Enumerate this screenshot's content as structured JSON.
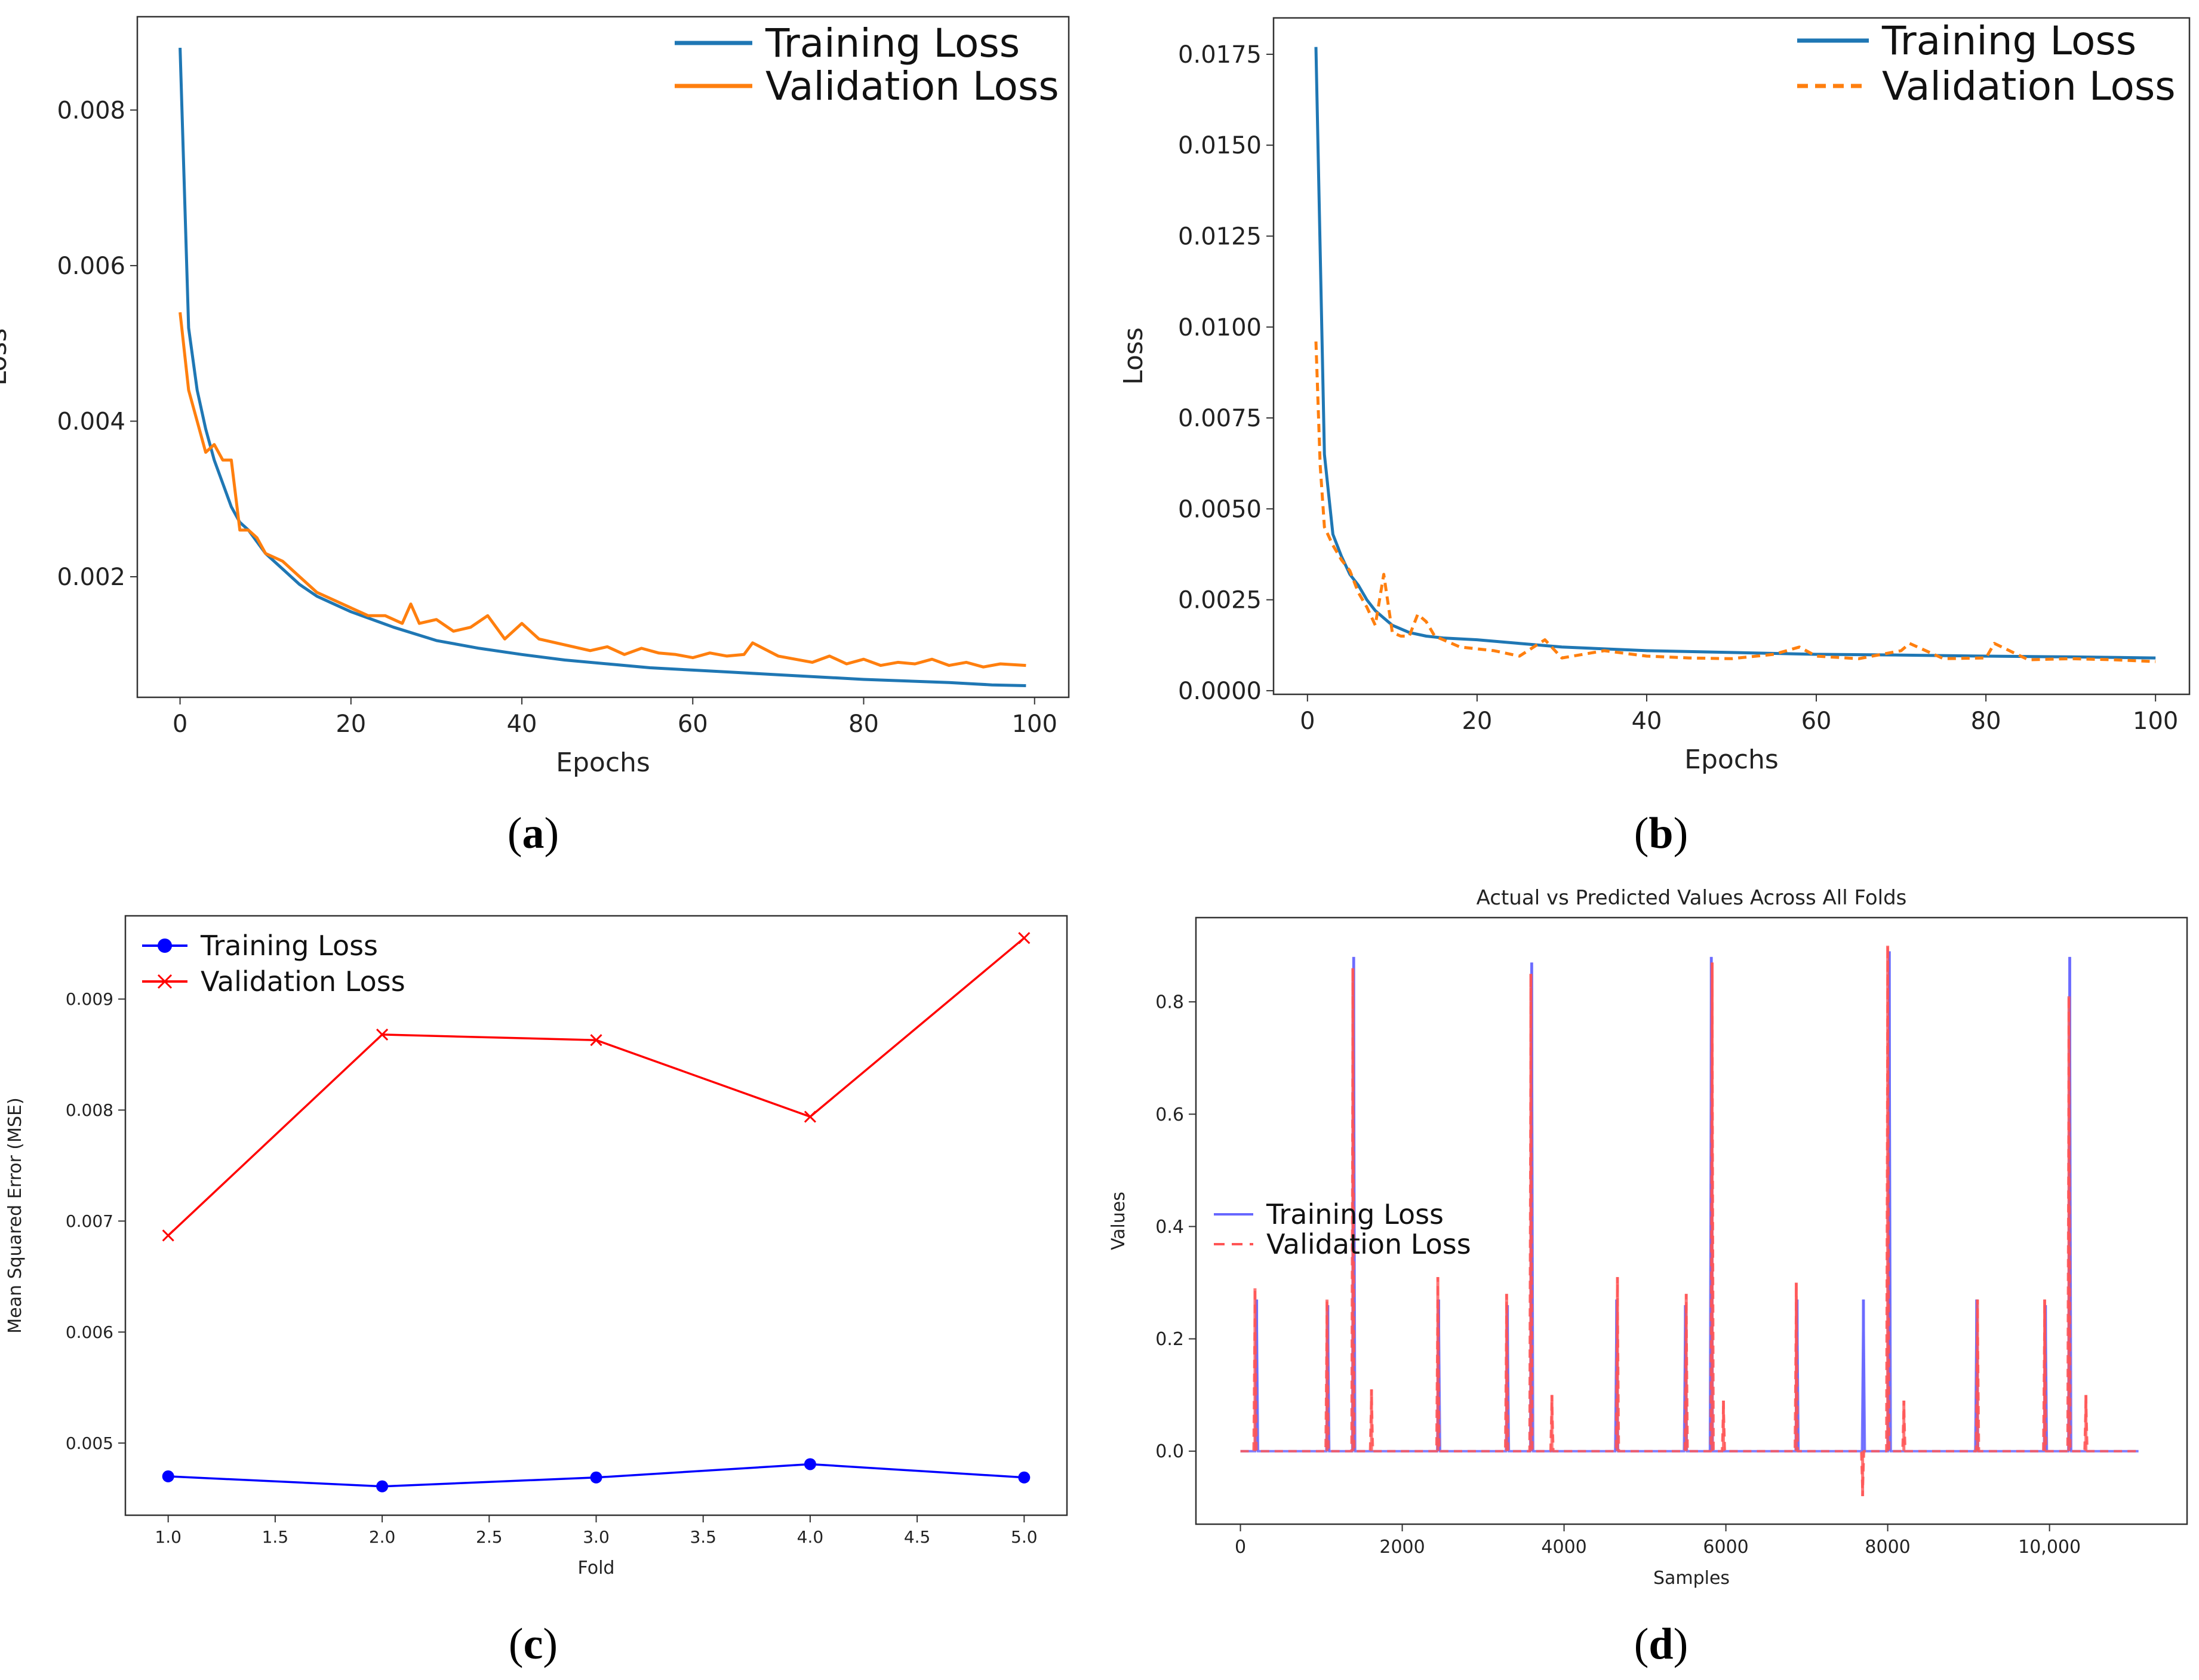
{
  "chart_data": [
    {
      "panel": "(a)",
      "type": "line",
      "title": "",
      "xlabel": "Epochs",
      "ylabel": "Loss",
      "xlim": [
        -5,
        104
      ],
      "ylim": [
        0.00045,
        0.0092
      ],
      "xticks": [
        0,
        20,
        40,
        60,
        80,
        100
      ],
      "yticks": [
        0.002,
        0.004,
        0.006,
        0.008
      ],
      "ytick_labels": [
        "0.002",
        "0.004",
        "0.006",
        "0.008"
      ],
      "legend_position": "top-right",
      "series": [
        {
          "name": "Training Loss",
          "color": "#1f77b4",
          "style": "solid",
          "x": [
            0,
            1,
            2,
            3,
            4,
            5,
            6,
            7,
            8,
            10,
            12,
            14,
            16,
            18,
            20,
            25,
            30,
            35,
            40,
            45,
            50,
            55,
            60,
            65,
            70,
            75,
            80,
            85,
            90,
            95,
            99
          ],
          "y": [
            0.0088,
            0.0052,
            0.0044,
            0.0039,
            0.0035,
            0.0032,
            0.0029,
            0.0027,
            0.0026,
            0.0023,
            0.0021,
            0.0019,
            0.00175,
            0.00165,
            0.00155,
            0.00135,
            0.00118,
            0.00108,
            0.001,
            0.00093,
            0.00088,
            0.00083,
            0.0008,
            0.00077,
            0.00074,
            0.00071,
            0.00068,
            0.00066,
            0.00064,
            0.00061,
            0.0006
          ]
        },
        {
          "name": "Validation Loss",
          "color": "#ff7f0e",
          "style": "solid",
          "x": [
            0,
            1,
            2,
            3,
            4,
            5,
            6,
            7,
            8,
            9,
            10,
            12,
            14,
            16,
            18,
            20,
            22,
            24,
            26,
            27,
            28,
            30,
            32,
            34,
            36,
            38,
            40,
            42,
            44,
            46,
            48,
            50,
            52,
            54,
            56,
            58,
            60,
            62,
            64,
            66,
            67,
            70,
            72,
            74,
            76,
            78,
            80,
            82,
            84,
            86,
            88,
            90,
            92,
            94,
            96,
            99
          ],
          "y": [
            0.0054,
            0.0044,
            0.004,
            0.0036,
            0.0037,
            0.0035,
            0.0035,
            0.0026,
            0.0026,
            0.0025,
            0.0023,
            0.0022,
            0.002,
            0.0018,
            0.0017,
            0.0016,
            0.0015,
            0.0015,
            0.0014,
            0.00165,
            0.0014,
            0.00145,
            0.0013,
            0.00135,
            0.0015,
            0.0012,
            0.0014,
            0.0012,
            0.00115,
            0.0011,
            0.00105,
            0.0011,
            0.001,
            0.00108,
            0.00102,
            0.001,
            0.00096,
            0.00102,
            0.00098,
            0.001,
            0.00115,
            0.00098,
            0.00094,
            0.0009,
            0.00098,
            0.00088,
            0.00094,
            0.00086,
            0.0009,
            0.00088,
            0.00094,
            0.00086,
            0.0009,
            0.00084,
            0.00088,
            0.00086
          ]
        }
      ]
    },
    {
      "panel": "(b)",
      "type": "line",
      "title": "",
      "xlabel": "Epochs",
      "ylabel": "Loss",
      "xlim": [
        -4,
        104
      ],
      "ylim": [
        -0.0001,
        0.0185
      ],
      "xticks": [
        0,
        20,
        40,
        60,
        80,
        100
      ],
      "yticks": [
        0,
        0.0025,
        0.005,
        0.0075,
        0.01,
        0.0125,
        0.015,
        0.0175
      ],
      "ytick_labels": [
        "0.0000",
        "0.0025",
        "0.0050",
        "0.0075",
        "0.0100",
        "0.0125",
        "0.0150",
        "0.0175"
      ],
      "legend_position": "top-right",
      "series": [
        {
          "name": "Training Loss",
          "color": "#1f77b4",
          "style": "solid",
          "x": [
            1,
            2,
            3,
            4,
            5,
            6,
            7,
            8,
            9,
            10,
            12,
            14,
            16,
            20,
            25,
            30,
            40,
            50,
            60,
            70,
            80,
            90,
            100
          ],
          "y": [
            0.0177,
            0.0065,
            0.0043,
            0.0037,
            0.0032,
            0.0029,
            0.0025,
            0.0022,
            0.002,
            0.0018,
            0.0016,
            0.0015,
            0.00145,
            0.0014,
            0.0013,
            0.0012,
            0.0011,
            0.00105,
            0.001,
            0.00098,
            0.00095,
            0.00093,
            0.0009
          ]
        },
        {
          "name": "Validation Loss",
          "color": "#ff7f0e",
          "style": "dashed",
          "x": [
            1,
            1.5,
            2,
            3,
            4,
            5,
            6,
            7,
            8,
            9,
            10,
            11,
            12,
            13,
            14,
            15,
            18,
            22,
            25,
            28,
            30,
            35,
            40,
            45,
            50,
            55,
            58,
            60,
            65,
            70,
            71,
            75,
            80,
            81,
            85,
            90,
            95,
            100
          ],
          "y": [
            0.0096,
            0.0062,
            0.0045,
            0.004,
            0.0036,
            0.0033,
            0.0027,
            0.0023,
            0.0018,
            0.0032,
            0.0016,
            0.0015,
            0.0015,
            0.0021,
            0.0019,
            0.0015,
            0.0012,
            0.0011,
            0.00095,
            0.0014,
            0.0009,
            0.0011,
            0.00095,
            0.0009,
            0.00088,
            0.001,
            0.0012,
            0.00095,
            0.00088,
            0.0011,
            0.0013,
            0.00088,
            0.0009,
            0.0013,
            0.00085,
            0.00088,
            0.00085,
            0.0008
          ]
        }
      ]
    },
    {
      "panel": "(c)",
      "type": "line",
      "title": "",
      "xlabel": "Fold",
      "ylabel": "Mean Squared Error (MSE)",
      "xlim": [
        0.8,
        5.2
      ],
      "ylim": [
        0.00435,
        0.00975
      ],
      "xticks": [
        1.0,
        1.5,
        2.0,
        2.5,
        3.0,
        3.5,
        4.0,
        4.5,
        5.0
      ],
      "xtick_labels": [
        "1.0",
        "1.5",
        "2.0",
        "2.5",
        "3.0",
        "3.5",
        "4.0",
        "4.5",
        "5.0"
      ],
      "yticks": [
        0.005,
        0.006,
        0.007,
        0.008,
        0.009
      ],
      "ytick_labels": [
        "0.005",
        "0.006",
        "0.007",
        "0.008",
        "0.009"
      ],
      "legend_position": "top-left",
      "series": [
        {
          "name": "Training Loss",
          "color": "#0000ff",
          "marker": "o",
          "x": [
            1,
            2,
            3,
            4,
            5
          ],
          "y": [
            0.0047,
            0.00461,
            0.00469,
            0.00481,
            0.00469
          ]
        },
        {
          "name": "Validation Loss",
          "color": "#ff0000",
          "marker": "x",
          "x": [
            1,
            2,
            3,
            4,
            5
          ],
          "y": [
            0.00687,
            0.00868,
            0.00863,
            0.00794,
            0.00955
          ]
        }
      ]
    },
    {
      "panel": "(d)",
      "type": "line",
      "title": "Actual vs Predicted Values Across All Folds",
      "xlabel": "Samples",
      "ylabel": "Values",
      "xlim": [
        -550,
        11700
      ],
      "ylim": [
        -0.13,
        0.95
      ],
      "xticks": [
        0,
        2000,
        4000,
        6000,
        8000,
        10000
      ],
      "xtick_labels": [
        "0",
        "2000",
        "4000",
        "6000",
        "8000",
        "10,000"
      ],
      "yticks": [
        0.0,
        0.2,
        0.4,
        0.6,
        0.8
      ],
      "ytick_labels": [
        "0.0",
        "0.2",
        "0.4",
        "0.6",
        "0.8"
      ],
      "legend_position": "center-left",
      "baseline": 0.0,
      "series": [
        {
          "name": "Training Loss",
          "color": "#6666ff",
          "style": "solid",
          "spikes": [
            [
              200,
              0.27
            ],
            [
              1080,
              0.26
            ],
            [
              1400,
              0.88
            ],
            [
              2450,
              0.27
            ],
            [
              3300,
              0.26
            ],
            [
              3600,
              0.87
            ],
            [
              4650,
              0.27
            ],
            [
              5500,
              0.26
            ],
            [
              5820,
              0.88
            ],
            [
              6880,
              0.27
            ],
            [
              7700,
              0.27
            ],
            [
              8020,
              0.89
            ],
            [
              9100,
              0.27
            ],
            [
              9950,
              0.26
            ],
            [
              10250,
              0.88
            ]
          ]
        },
        {
          "name": "Validation Loss",
          "color": "#ff5555",
          "style": "dashed",
          "spikes": [
            [
              180,
              0.29
            ],
            [
              1070,
              0.27
            ],
            [
              1390,
              0.86
            ],
            [
              1620,
              0.11
            ],
            [
              2440,
              0.31
            ],
            [
              3290,
              0.28
            ],
            [
              3590,
              0.85
            ],
            [
              3850,
              0.1
            ],
            [
              4660,
              0.31
            ],
            [
              5510,
              0.28
            ],
            [
              5830,
              0.87
            ],
            [
              5970,
              0.09
            ],
            [
              6870,
              0.3
            ],
            [
              7690,
              -0.08
            ],
            [
              8000,
              0.9
            ],
            [
              8200,
              0.09
            ],
            [
              9110,
              0.27
            ],
            [
              9940,
              0.27
            ],
            [
              10240,
              0.81
            ],
            [
              10450,
              0.1
            ]
          ]
        }
      ]
    }
  ],
  "panel_labels": [
    {
      "open": "(",
      "letter": "a",
      "close": ")"
    },
    {
      "open": "(",
      "letter": "b",
      "close": ")"
    },
    {
      "open": "(",
      "letter": "c",
      "close": ")"
    },
    {
      "open": "(",
      "letter": "d",
      "close": ")"
    }
  ]
}
